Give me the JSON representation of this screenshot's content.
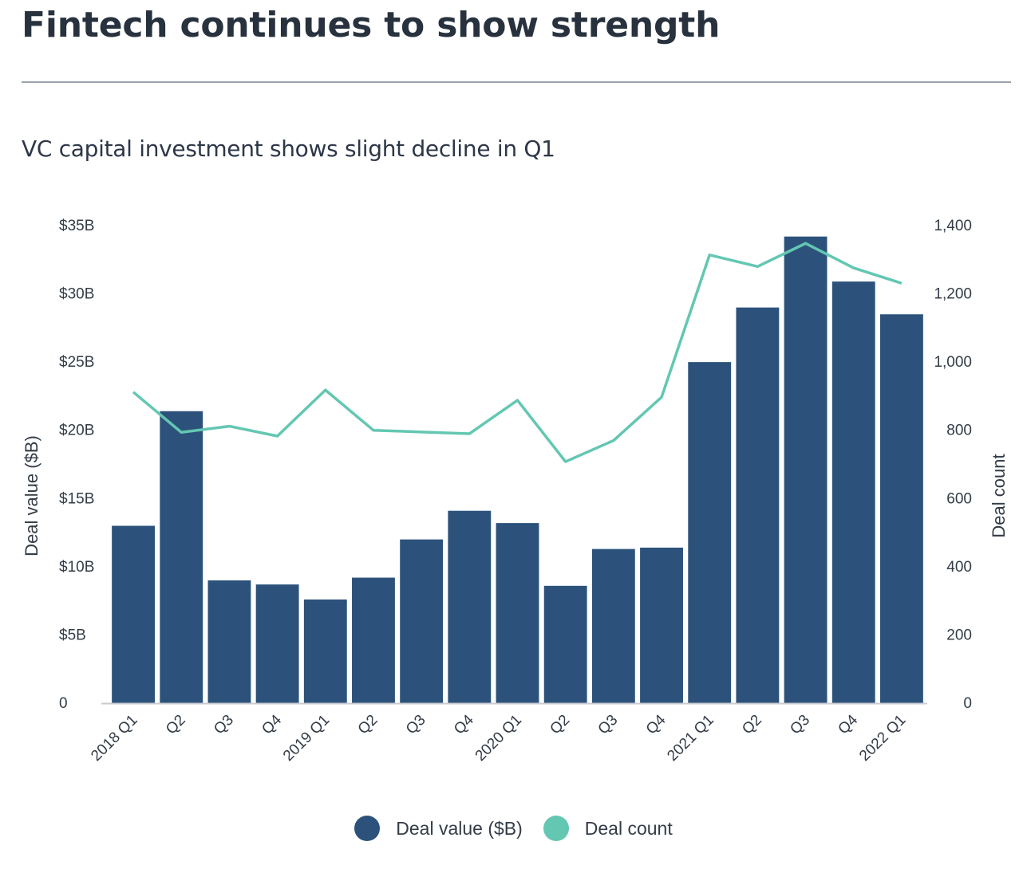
{
  "header": {
    "title": "Fintech continues to show strength",
    "subtitle": "VC capital investment shows slight decline in Q1"
  },
  "colors": {
    "bar": "#2c527c",
    "line": "#63c7b2",
    "axis": "#c8cdd2",
    "rule": "#9aa3ad"
  },
  "chart_data": {
    "type": "bar",
    "title": "VC capital investment shows slight decline in Q1",
    "categories": [
      "2018 Q1",
      "Q2",
      "Q3",
      "Q4",
      "2019 Q1",
      "Q2",
      "Q3",
      "Q4",
      "2020 Q1",
      "Q2",
      "Q3",
      "Q4",
      "2021 Q1",
      "Q2",
      "Q3",
      "Q4",
      "2022 Q1"
    ],
    "series": [
      {
        "name": "Deal value ($B)",
        "type": "bar",
        "axis": "left",
        "values": [
          13.0,
          21.4,
          9.0,
          8.7,
          7.6,
          9.2,
          12.0,
          14.1,
          13.2,
          8.6,
          11.3,
          11.4,
          25.0,
          29.0,
          34.2,
          30.9,
          28.5
        ]
      },
      {
        "name": "Deal count",
        "type": "line",
        "axis": "right",
        "values": [
          912,
          794,
          812,
          783,
          918,
          800,
          795,
          790,
          888,
          708,
          770,
          897,
          1314,
          1280,
          1348,
          1276,
          1231
        ]
      }
    ],
    "ylabel": "Deal value ($B)",
    "y2label": "Deal count",
    "ylim": [
      0,
      35
    ],
    "y2lim": [
      0,
      1400
    ],
    "yticks": [
      "0",
      "$5B",
      "$10B",
      "$15B",
      "$20B",
      "$25B",
      "$30B",
      "$35B"
    ],
    "y2ticks": [
      "0",
      "200",
      "400",
      "600",
      "800",
      "1,000",
      "1,200",
      "1,400"
    ],
    "grid": false,
    "legend_position": "bottom-center"
  }
}
